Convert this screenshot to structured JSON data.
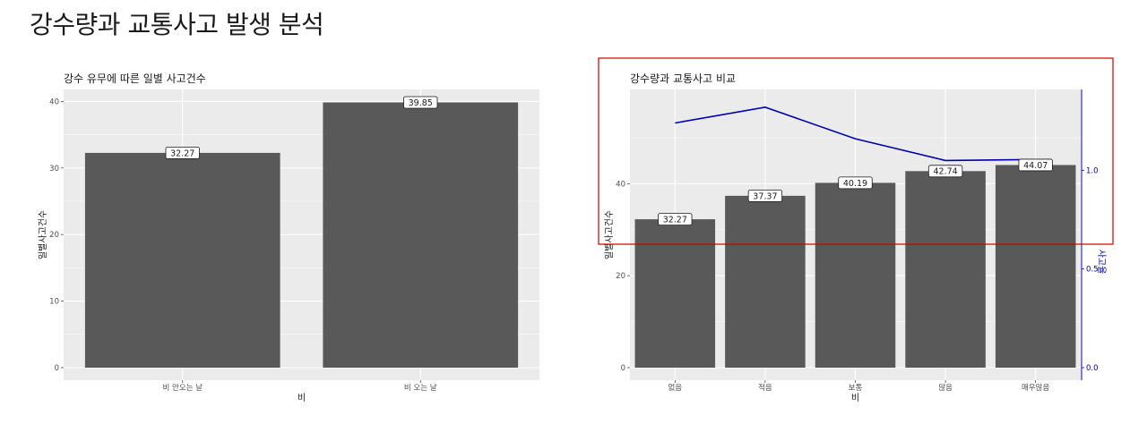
{
  "page": {
    "title": "강수량과 교통사고 발생 분석"
  },
  "chart_data": [
    {
      "type": "bar",
      "title": "강수 유무에 따른 일별 사고건수",
      "xlabel": "비",
      "ylabel": "일별사고건수",
      "categories": [
        "비 안오는 날",
        "비 오는 날"
      ],
      "values": [
        32.27,
        39.85
      ],
      "data_labels": [
        "32.27",
        "39.85"
      ],
      "ylim": [
        0,
        41.8
      ],
      "yticks": [
        0,
        10,
        20,
        30,
        40
      ],
      "bar_color": "#595959",
      "grid": true
    },
    {
      "type": "bar",
      "title": "강수량과 교통사고 비교",
      "xlabel": "비",
      "ylabel": "일별사고건수",
      "y2label": "사고율",
      "categories": [
        "없음",
        "적음",
        "보통",
        "많음",
        "매우많음"
      ],
      "values": [
        32.27,
        37.37,
        40.19,
        42.74,
        44.07
      ],
      "data_labels": [
        "32.27",
        "37.37",
        "40.19",
        "42.74",
        "44.07"
      ],
      "line_series": {
        "values": [
          1.24,
          1.32,
          1.16,
          1.05,
          1.055
        ],
        "color": "#0000aa",
        "axis": "secondary"
      },
      "ylim": [
        0,
        60.5
      ],
      "yticks": [
        0,
        20,
        40
      ],
      "y2lim": [
        0,
        1.41
      ],
      "y2ticks": [
        0.0,
        0.5,
        1.0
      ],
      "y2ticklabels": [
        "0.0",
        "0.5",
        "1.0"
      ],
      "bar_color": "#595959",
      "secondary_axis_color": "#0000aa",
      "highlight_color": "#cc0000",
      "grid": true
    }
  ]
}
